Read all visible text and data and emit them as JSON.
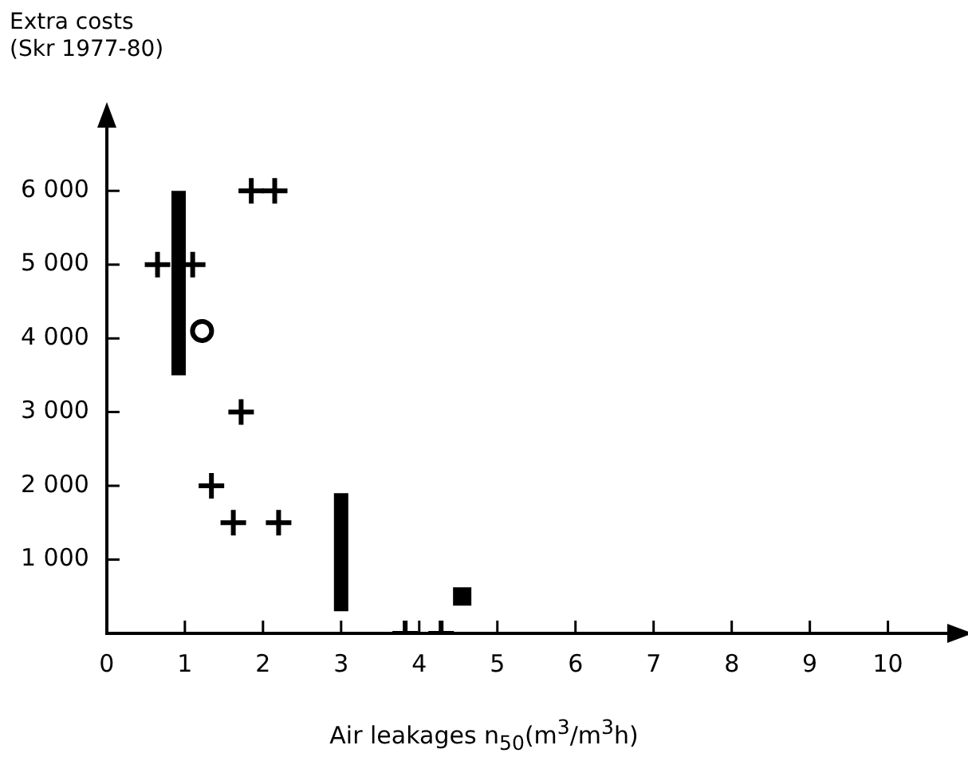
{
  "chart_data": {
    "type": "scatter",
    "xlabel": "Air leakages n$_{50}$(m$^{3}$/m$^{3}$h)",
    "ylabel": "Extra costs\n(Skr 1977-80)",
    "xlim": [
      0,
      10.8
    ],
    "ylim": [
      0,
      6900
    ],
    "xticks": [
      0,
      1,
      2,
      3,
      4,
      5,
      6,
      7,
      8,
      9,
      10
    ],
    "yticks": [
      {
        "value": 1000,
        "label": "1 000"
      },
      {
        "value": 2000,
        "label": "2 000"
      },
      {
        "value": 3000,
        "label": "3 000"
      },
      {
        "value": 4000,
        "label": "4 000"
      },
      {
        "value": 5000,
        "label": "5 000"
      },
      {
        "value": 6000,
        "label": "6 000"
      }
    ],
    "grid": false,
    "legend": false,
    "series": [
      {
        "marker": "cross",
        "color": "#000000",
        "x": [
          1.85,
          2.15,
          0.65,
          1.1,
          1.72,
          1.34,
          1.62,
          2.2,
          3.82,
          4.28
        ],
        "values": [
          6000,
          6000,
          5000,
          5000,
          3000,
          2000,
          1500,
          1500,
          0,
          0
        ]
      },
      {
        "marker": "circle",
        "color": "#000000",
        "x": [
          1.22
        ],
        "values": [
          4100
        ]
      },
      {
        "marker": "square",
        "color": "#000000",
        "x": [
          4.55
        ],
        "values": [
          500
        ]
      },
      {
        "type": "line",
        "marker": "none",
        "color": "#000000",
        "x": [
          0.92,
          0.92
        ],
        "values": [
          3500,
          6000
        ]
      },
      {
        "type": "line",
        "marker": "none",
        "color": "#000000",
        "x": [
          3.0,
          3.0
        ],
        "values": [
          300,
          1900
        ]
      }
    ]
  }
}
